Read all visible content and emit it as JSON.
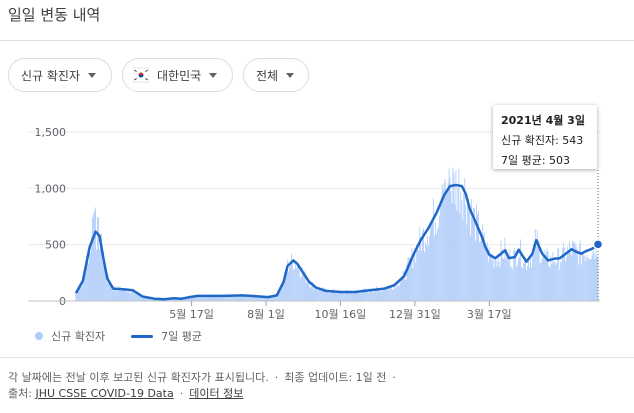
{
  "header": {
    "title": "일일 변동 내역"
  },
  "filters": {
    "metric_label": "신규 확진자",
    "region_label": "대한민국",
    "range_label": "전체"
  },
  "tooltip": {
    "date": "2021년 4월 3일",
    "cases_text": "신규 확진자: 543",
    "avg_text": "7일 평균: 503"
  },
  "legend": {
    "cases_label": "신규 확진자",
    "avg_label": "7일 평균"
  },
  "footer": {
    "note": "각 날짜에는 전날 이후 보고된 신규 확진자가 표시됩니다.",
    "updated": "최종 업데이트: 1일 전",
    "source_prefix": "출처:",
    "source_link": "JHU CSSE COVID-19 Data",
    "data_info_link": "데이터 정보"
  },
  "colors": {
    "bars": "#aecbfa",
    "line": "#1f68c8",
    "axis": "#5f6368"
  },
  "chart_data": {
    "type": "bar",
    "title": "",
    "xlabel": "",
    "ylabel": "",
    "ylim": [
      0,
      1500
    ],
    "yticks": [
      0,
      500,
      1000,
      1500
    ],
    "ytick_labels": [
      "0",
      "500",
      "1,000",
      "1,500"
    ],
    "xtick_labels": [
      "5월 17일",
      "8월 1일",
      "10월 16일",
      "12월 31일",
      "3월 17일"
    ],
    "xtick_day_index": [
      118,
      194,
      270,
      346,
      422
    ],
    "grid": true,
    "series": [
      {
        "name": "7일 평균",
        "kind": "line",
        "points": [
          [
            0,
            70
          ],
          [
            7,
            180
          ],
          [
            14,
            480
          ],
          [
            20,
            615
          ],
          [
            24,
            580
          ],
          [
            28,
            380
          ],
          [
            32,
            200
          ],
          [
            38,
            110
          ],
          [
            48,
            105
          ],
          [
            58,
            95
          ],
          [
            68,
            40
          ],
          [
            80,
            20
          ],
          [
            90,
            15
          ],
          [
            100,
            25
          ],
          [
            108,
            20
          ],
          [
            116,
            35
          ],
          [
            124,
            45
          ],
          [
            132,
            45
          ],
          [
            150,
            45
          ],
          [
            170,
            50
          ],
          [
            188,
            40
          ],
          [
            196,
            35
          ],
          [
            205,
            50
          ],
          [
            212,
            170
          ],
          [
            216,
            310
          ],
          [
            222,
            360
          ],
          [
            226,
            330
          ],
          [
            232,
            250
          ],
          [
            238,
            170
          ],
          [
            245,
            120
          ],
          [
            255,
            90
          ],
          [
            270,
            80
          ],
          [
            285,
            80
          ],
          [
            300,
            95
          ],
          [
            315,
            110
          ],
          [
            325,
            140
          ],
          [
            335,
            220
          ],
          [
            345,
            420
          ],
          [
            352,
            540
          ],
          [
            360,
            650
          ],
          [
            368,
            780
          ],
          [
            376,
            940
          ],
          [
            382,
            1020
          ],
          [
            388,
            1030
          ],
          [
            394,
            1020
          ],
          [
            398,
            950
          ],
          [
            402,
            820
          ],
          [
            408,
            700
          ],
          [
            414,
            580
          ],
          [
            418,
            480
          ],
          [
            422,
            410
          ],
          [
            428,
            380
          ],
          [
            434,
            420
          ],
          [
            438,
            450
          ],
          [
            442,
            380
          ],
          [
            448,
            390
          ],
          [
            452,
            455
          ],
          [
            456,
            400
          ],
          [
            460,
            350
          ],
          [
            466,
            420
          ],
          [
            470,
            540
          ],
          [
            476,
            420
          ],
          [
            482,
            360
          ],
          [
            488,
            375
          ],
          [
            494,
            380
          ],
          [
            500,
            420
          ],
          [
            506,
            460
          ],
          [
            510,
            440
          ],
          [
            516,
            420
          ],
          [
            520,
            440
          ],
          [
            526,
            460
          ],
          [
            530,
            480
          ],
          [
            533,
            503
          ]
        ]
      }
    ]
  }
}
